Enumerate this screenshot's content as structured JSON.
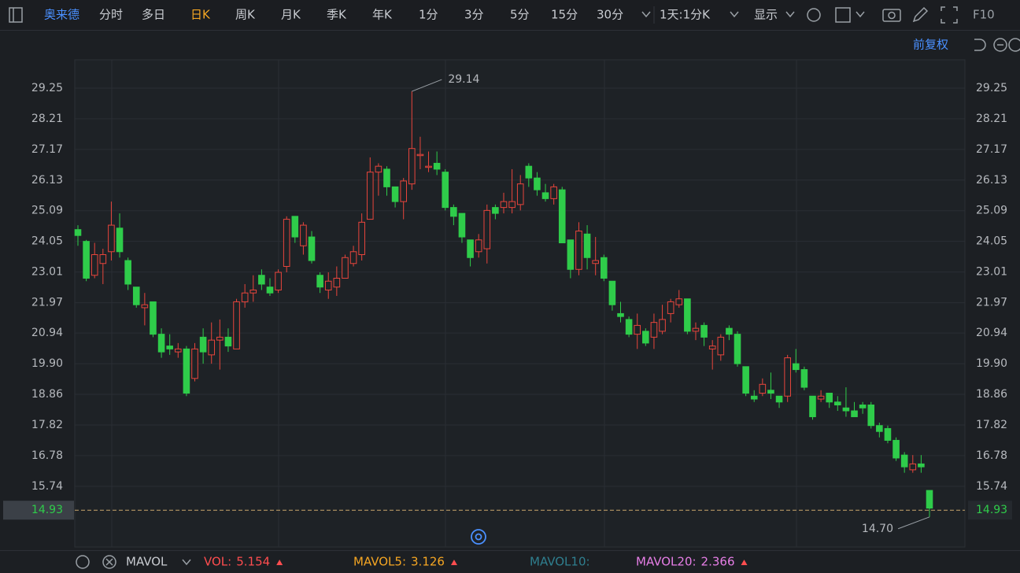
{
  "toolbar": {
    "stock": "奥来德",
    "periods": [
      "分时",
      "多日",
      "日K",
      "周K",
      "月K",
      "季K",
      "年K",
      "1分",
      "3分",
      "5分",
      "15分",
      "30分"
    ],
    "range": "1天:1分K",
    "display": "显示",
    "f10": "F10"
  },
  "adjust": "前复权",
  "chart_data": {
    "type": "candlestick",
    "open": [
      24.45,
      24.05,
      22.9,
      23.3,
      23.7,
      24.5,
      23.4,
      22.5,
      21.8,
      22.0,
      20.9,
      20.5,
      20.3,
      20.4,
      19.4,
      20.8,
      20.2,
      20.7,
      20.8,
      20.4,
      22.0,
      22.3,
      22.9,
      22.5,
      22.4,
      23.2,
      24.9,
      23.9,
      24.2,
      22.9,
      22.4,
      22.5,
      22.8,
      23.3,
      23.6,
      24.8,
      26.4,
      26.5,
      25.9,
      25.4,
      26.0,
      27.0,
      26.6,
      26.7,
      26.4,
      25.2,
      25.0,
      24.1,
      23.7,
      23.8,
      25.2,
      25.2,
      25.2,
      25.3,
      26.6,
      26.2,
      25.7,
      25.5,
      25.8,
      24.1,
      23.1,
      24.3,
      23.3,
      23.5,
      22.7,
      21.6,
      21.4,
      20.9,
      21.0,
      20.8,
      21.0,
      21.6,
      21.9,
      22.1,
      21.0,
      21.2,
      20.4,
      20.2,
      21.1,
      20.9,
      19.8,
      18.8,
      18.9,
      19.0,
      18.8,
      18.8,
      19.9,
      19.7,
      18.8,
      18.7,
      18.9,
      18.6,
      18.4,
      18.3,
      18.5,
      18.5,
      17.8,
      17.7,
      17.3,
      16.8,
      16.3,
      16.5,
      15.6
    ],
    "high": [
      24.6,
      24.1,
      24.0,
      23.8,
      25.4,
      25.0,
      23.5,
      22.5,
      22.3,
      22.0,
      21.1,
      20.9,
      20.6,
      20.5,
      20.6,
      21.1,
      21.3,
      21.4,
      21.1,
      22.1,
      22.6,
      22.9,
      23.1,
      22.8,
      23.1,
      24.9,
      24.9,
      24.7,
      24.4,
      23.0,
      23.0,
      23.2,
      23.6,
      23.9,
      25.0,
      26.9,
      26.7,
      26.6,
      25.9,
      26.2,
      29.14,
      27.6,
      27.1,
      27.1,
      26.5,
      25.3,
      25.0,
      24.1,
      24.3,
      25.3,
      25.3,
      25.7,
      26.5,
      26.3,
      26.7,
      26.4,
      26.0,
      26.0,
      25.9,
      24.1,
      24.7,
      24.6,
      24.2,
      23.6,
      22.7,
      22.0,
      21.5,
      21.6,
      21.1,
      21.6,
      21.9,
      22.1,
      22.4,
      22.1,
      21.3,
      21.3,
      20.7,
      20.9,
      21.2,
      21.0,
      19.8,
      19.0,
      19.4,
      19.6,
      18.8,
      20.2,
      20.4,
      19.8,
      18.8,
      19.0,
      18.9,
      18.8,
      19.1,
      18.6,
      18.6,
      18.6,
      17.9,
      17.8,
      17.4,
      16.9,
      16.8,
      16.8,
      15.6
    ],
    "low": [
      23.9,
      22.7,
      22.8,
      22.6,
      23.4,
      23.5,
      22.4,
      21.8,
      21.2,
      20.8,
      20.1,
      20.2,
      20.1,
      18.8,
      19.3,
      19.9,
      19.9,
      19.7,
      20.3,
      20.4,
      21.8,
      22.0,
      22.4,
      22.2,
      22.3,
      23.0,
      24.0,
      23.6,
      23.3,
      22.3,
      22.1,
      22.2,
      22.8,
      23.2,
      23.4,
      24.8,
      25.6,
      25.6,
      25.2,
      24.8,
      25.8,
      26.5,
      26.4,
      26.3,
      25.1,
      24.6,
      24.0,
      23.2,
      23.5,
      23.3,
      24.8,
      25.0,
      25.0,
      25.1,
      25.9,
      25.6,
      25.4,
      25.3,
      24.0,
      22.8,
      22.9,
      23.1,
      22.9,
      22.7,
      21.7,
      21.3,
      20.8,
      20.4,
      20.5,
      20.4,
      20.9,
      21.3,
      21.8,
      20.9,
      20.7,
      20.5,
      19.7,
      20.0,
      20.7,
      19.8,
      18.8,
      18.6,
      18.8,
      18.7,
      18.4,
      18.6,
      19.6,
      19.0,
      18.0,
      18.6,
      18.4,
      18.3,
      18.1,
      18.1,
      18.2,
      17.7,
      17.4,
      17.2,
      16.6,
      16.2,
      16.2,
      16.2,
      14.7
    ],
    "close": [
      24.25,
      22.8,
      23.6,
      23.6,
      24.6,
      23.7,
      22.6,
      21.9,
      21.9,
      20.9,
      20.3,
      20.4,
      20.4,
      18.9,
      20.4,
      20.3,
      20.7,
      20.8,
      20.5,
      22.0,
      22.3,
      22.4,
      22.6,
      22.3,
      23.0,
      24.8,
      24.2,
      24.6,
      23.4,
      22.5,
      22.7,
      22.8,
      23.5,
      23.7,
      24.7,
      26.4,
      26.6,
      25.9,
      25.4,
      26.1,
      27.2,
      27.0,
      26.6,
      26.5,
      25.2,
      24.9,
      24.2,
      23.5,
      24.1,
      25.1,
      25.0,
      25.4,
      25.4,
      26.0,
      26.2,
      25.8,
      25.5,
      25.9,
      24.0,
      23.1,
      24.4,
      23.5,
      23.4,
      22.8,
      21.9,
      21.5,
      20.9,
      21.2,
      20.6,
      21.3,
      21.4,
      22.0,
      22.1,
      21.0,
      21.1,
      20.8,
      20.5,
      20.8,
      20.9,
      19.9,
      18.9,
      18.7,
      19.2,
      18.9,
      18.6,
      20.1,
      19.7,
      19.1,
      18.1,
      18.8,
      18.6,
      18.5,
      18.3,
      18.1,
      18.4,
      17.8,
      17.6,
      17.3,
      16.7,
      16.4,
      16.5,
      16.4,
      15.0
    ],
    "up_color": "#e8453c",
    "down_color": "#2fcc4a",
    "ylim": [
      13.68,
      30.21
    ],
    "yticks": [
      29.25,
      28.21,
      27.17,
      26.13,
      25.09,
      24.05,
      23.01,
      21.97,
      20.94,
      {
        "value": 19.9,
        "label": "19.90"
      },
      18.86,
      17.82,
      16.78,
      15.74
    ],
    "grid": true,
    "max_label": "29.14",
    "min_label": "14.70",
    "last_price": {
      "value": 14.93,
      "label": "14.93"
    }
  },
  "indicators": {
    "name": "MAVOL",
    "items": [
      {
        "name": "VOL:",
        "value": 5.154,
        "color": "#ff4d4f"
      },
      {
        "name": "MAVOL5:",
        "value": 3.126,
        "color": "#f5a623"
      },
      {
        "name": "MAVOL10:",
        "color": "#2f7f8f"
      },
      {
        "name": "MAVOL20:",
        "value": 2.366,
        "color": "#e67ee6"
      }
    ]
  }
}
